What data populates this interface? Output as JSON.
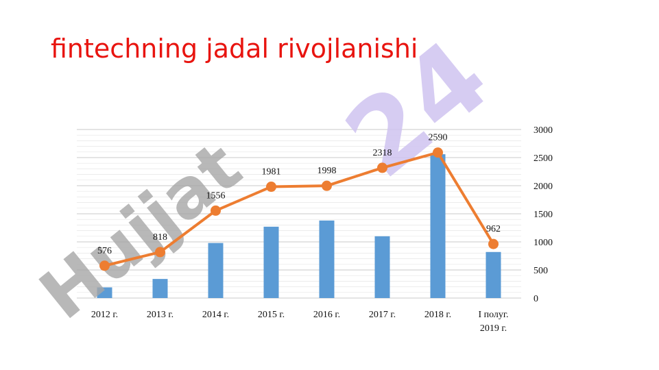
{
  "slide": {
    "title": "fintechning jadal rivojlanishi",
    "watermark": "Hujjat24"
  },
  "colors": {
    "title": "#e8140f",
    "bar": "#5b9bd5",
    "line": "#ed7d31",
    "watermark_gray": "#a6a6a6",
    "watermark_purple": "#cfc3f0"
  },
  "chart_data": {
    "type": "bar",
    "categories": [
      "2012 г.",
      "2013 г.",
      "2014 г.",
      "2015 г.",
      "2016 г.",
      "2017 г.",
      "2018 г.",
      "I полуг. 2019 г."
    ],
    "series": [
      {
        "type": "bar",
        "values": [
          190,
          340,
          980,
          1270,
          1380,
          1100,
          2560,
          820
        ]
      },
      {
        "type": "line",
        "values": [
          576,
          818,
          1556,
          1981,
          1998,
          2318,
          2590,
          962
        ],
        "data_labels": [
          "576",
          "818",
          "1556",
          "1981",
          "1998",
          "2318",
          "2590",
          "962"
        ]
      }
    ],
    "y_ticks": [
      "0",
      "500",
      "1000",
      "1500",
      "2000",
      "2500",
      "3000"
    ],
    "ylim": [
      0,
      3000
    ],
    "y_axis_position": "right",
    "grid": true,
    "legend": "none"
  }
}
